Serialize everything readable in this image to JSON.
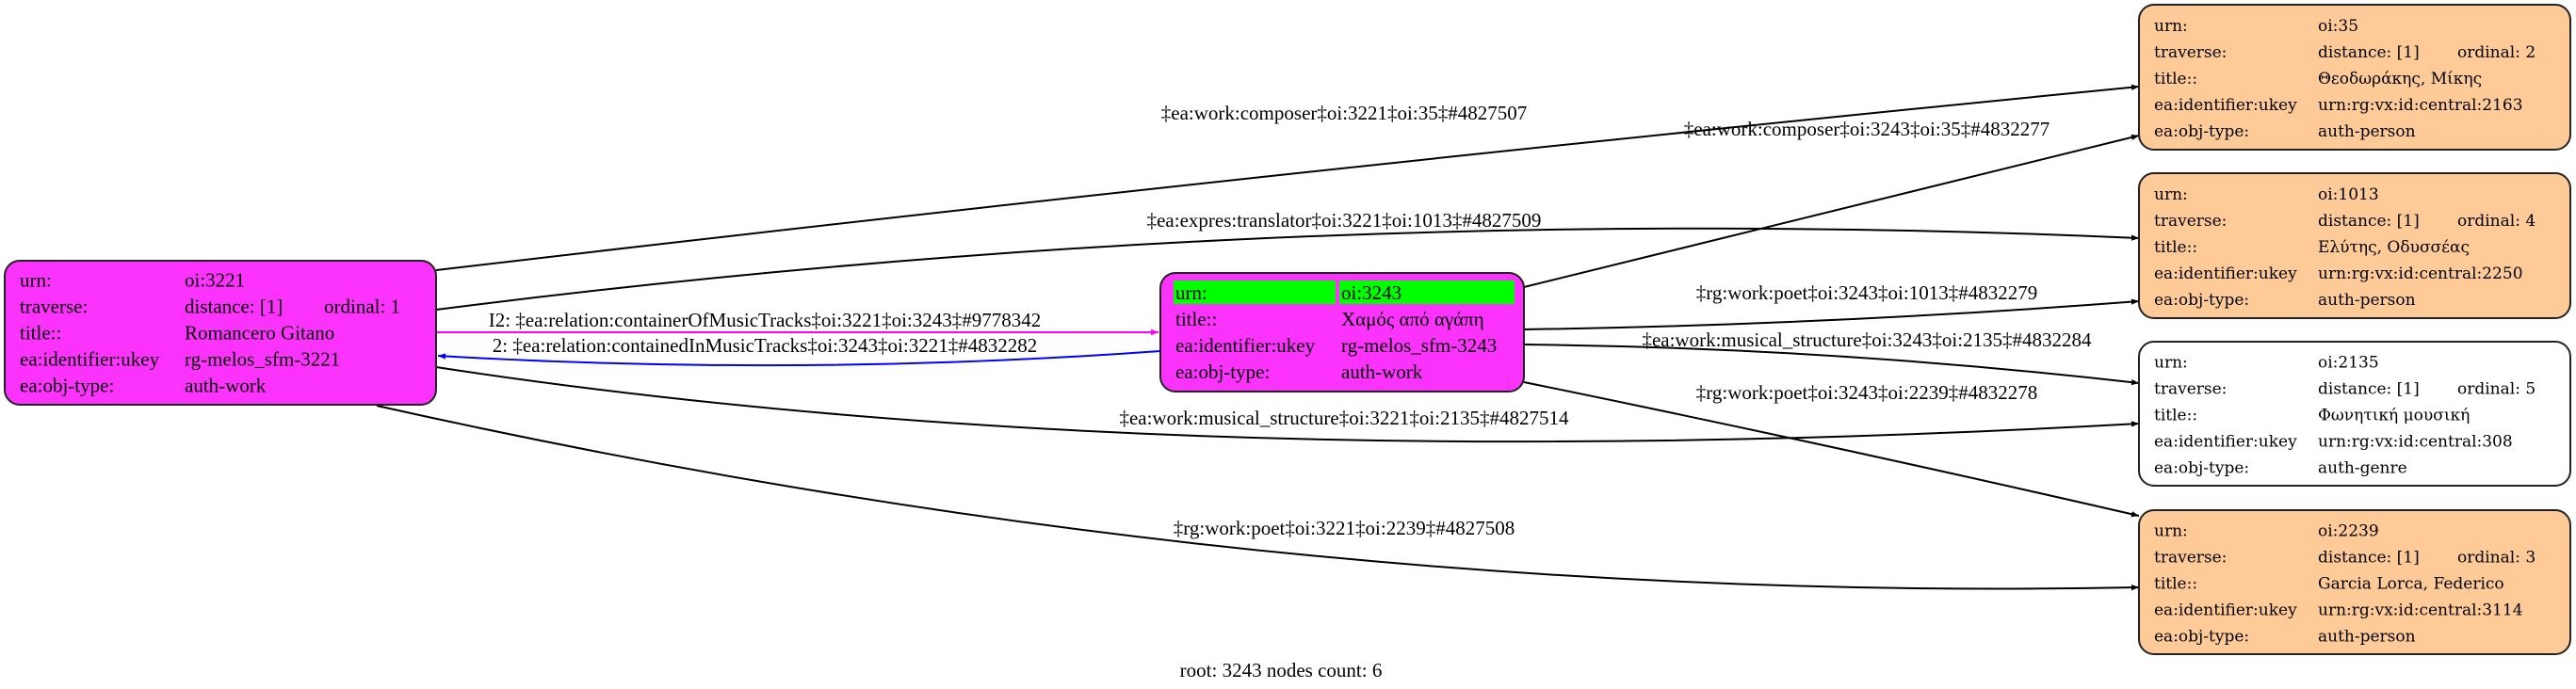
{
  "colors": {
    "work_node": "#fc33fc",
    "person_node": "#fecb98",
    "genre_node": "#ffffff",
    "root_highlight": "#00ff00",
    "edge_default": "#000000",
    "edge_container": "#ff00ff",
    "edge_contained": "#0000ff"
  },
  "nodes": [
    {
      "id": "oi:3221",
      "rows": [
        {
          "label": "urn:",
          "value": "oi:3221"
        },
        {
          "label": "traverse:",
          "value": "distance: [1]",
          "extra": "ordinal: 1"
        },
        {
          "label": "title::",
          "value": "Romancero Gitano"
        },
        {
          "label": "ea:identifier:ukey",
          "value": "rg-melos_sfm-3221"
        },
        {
          "label": "ea:obj-type:",
          "value": "auth-work"
        }
      ]
    },
    {
      "id": "oi:3243",
      "root": true,
      "rows": [
        {
          "label": "urn:",
          "value": "oi:3243"
        },
        {
          "label": "title::",
          "value": "Χαμός από αγάπη"
        },
        {
          "label": "ea:identifier:ukey",
          "value": "rg-melos_sfm-3243"
        },
        {
          "label": "ea:obj-type:",
          "value": "auth-work"
        }
      ]
    },
    {
      "id": "oi:35",
      "rows": [
        {
          "label": "urn:",
          "value": "oi:35"
        },
        {
          "label": "traverse:",
          "value": "distance: [1]",
          "extra": "ordinal: 2"
        },
        {
          "label": "title::",
          "value": "Θεοδωράκης, Μίκης"
        },
        {
          "label": "ea:identifier:ukey",
          "value": "urn:rg:vx:id:central:2163"
        },
        {
          "label": "ea:obj-type:",
          "value": "auth-person"
        }
      ]
    },
    {
      "id": "oi:1013",
      "rows": [
        {
          "label": "urn:",
          "value": "oi:1013"
        },
        {
          "label": "traverse:",
          "value": "distance: [1]",
          "extra": "ordinal: 4"
        },
        {
          "label": "title::",
          "value": "Ελύτης, Οδυσσέας"
        },
        {
          "label": "ea:identifier:ukey",
          "value": "urn:rg:vx:id:central:2250"
        },
        {
          "label": "ea:obj-type:",
          "value": "auth-person"
        }
      ]
    },
    {
      "id": "oi:2135",
      "rows": [
        {
          "label": "urn:",
          "value": "oi:2135"
        },
        {
          "label": "traverse:",
          "value": "distance: [1]",
          "extra": "ordinal: 5"
        },
        {
          "label": "title::",
          "value": "Φωνητική μουσική"
        },
        {
          "label": "ea:identifier:ukey",
          "value": "urn:rg:vx:id:central:308"
        },
        {
          "label": "ea:obj-type:",
          "value": "auth-genre"
        }
      ]
    },
    {
      "id": "oi:2239",
      "rows": [
        {
          "label": "urn:",
          "value": "oi:2239"
        },
        {
          "label": "traverse:",
          "value": "distance: [1]",
          "extra": "ordinal: 3"
        },
        {
          "label": "title::",
          "value": "Garcia Lorca, Federico"
        },
        {
          "label": "ea:identifier:ukey",
          "value": "urn:rg:vx:id:central:3114"
        },
        {
          "label": "ea:obj-type:",
          "value": "auth-person"
        }
      ]
    }
  ],
  "edges": [
    {
      "from": "oi:3221",
      "to": "oi:35",
      "label": "‡ea:work:composer‡oi:3221‡oi:35‡#4827507",
      "kind": "default"
    },
    {
      "from": "oi:3221",
      "to": "oi:1013",
      "label": "‡ea:expres:translator‡oi:3221‡oi:1013‡#4827509",
      "kind": "default"
    },
    {
      "from": "oi:3221",
      "to": "oi:3243",
      "label": "I2: ‡ea:relation:containerOfMusicTracks‡oi:3221‡oi:3243‡#9778342",
      "kind": "container"
    },
    {
      "from": "oi:3243",
      "to": "oi:3221",
      "label": "2: ‡ea:relation:containedInMusicTracks‡oi:3243‡oi:3221‡#4832282",
      "kind": "contained"
    },
    {
      "from": "oi:3221",
      "to": "oi:2135",
      "label": "‡ea:work:musical_structure‡oi:3221‡oi:2135‡#4827514",
      "kind": "default"
    },
    {
      "from": "oi:3221",
      "to": "oi:2239",
      "label": "‡rg:work:poet‡oi:3221‡oi:2239‡#4827508",
      "kind": "default"
    },
    {
      "from": "oi:3243",
      "to": "oi:35",
      "label": "‡ea:work:composer‡oi:3243‡oi:35‡#4832277",
      "kind": "default"
    },
    {
      "from": "oi:3243",
      "to": "oi:1013",
      "label": "‡rg:work:poet‡oi:3243‡oi:1013‡#4832279",
      "kind": "default"
    },
    {
      "from": "oi:3243",
      "to": "oi:2135",
      "label": "‡ea:work:musical_structure‡oi:3243‡oi:2135‡#4832284",
      "kind": "default"
    },
    {
      "from": "oi:3243",
      "to": "oi:2239",
      "label": "‡rg:work:poet‡oi:3243‡oi:2239‡#4832278",
      "kind": "default"
    }
  ],
  "footer": "root: 3243 nodes count: 6"
}
